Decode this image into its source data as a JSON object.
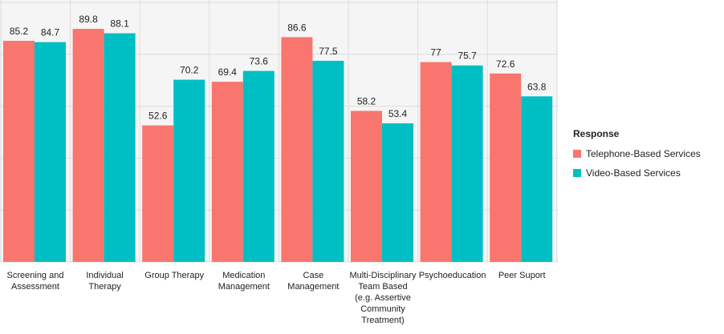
{
  "chart_data": {
    "type": "bar",
    "categories": [
      "Screening and Assessment",
      "Individual Therapy",
      "Group Therapy",
      "Medication Management",
      "Case Management",
      "Multi-Disciplinary Team Based (e.g. Assertive Community Treatment)",
      "Psychoeducation",
      "Peer Suport"
    ],
    "series": [
      {
        "name": "Telephone-Based Services",
        "color": "#f8766d",
        "values": [
          85.2,
          89.8,
          52.6,
          69.4,
          86.6,
          58.2,
          77,
          72.6
        ],
        "labels": [
          "85.2",
          "89.8",
          "52.6",
          "69.4",
          "86.6",
          "58.2",
          "77",
          "72.6"
        ]
      },
      {
        "name": "Video-Based Services",
        "color": "#00bfc4",
        "values": [
          84.7,
          88.1,
          70.2,
          73.6,
          77.5,
          53.4,
          75.7,
          63.8
        ],
        "labels": [
          "84.7",
          "88.1",
          "70.2",
          "73.6",
          "77.5",
          "53.4",
          "75.7",
          "63.8"
        ]
      }
    ],
    "legend_title": "Response",
    "legend_position": "right",
    "ylim": [
      0,
      100
    ],
    "grid": true
  }
}
